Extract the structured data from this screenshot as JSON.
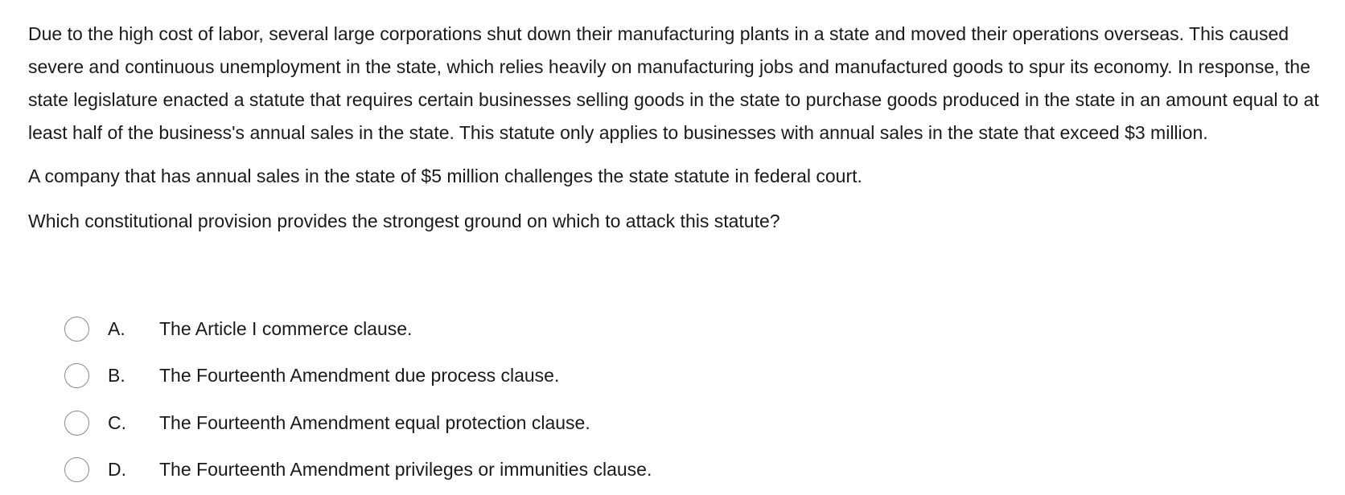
{
  "question": {
    "paragraphs": [
      "Due to the high cost of labor, several large corporations shut down their manufacturing plants in a state and moved their operations overseas. This caused severe and continuous unemployment in the state, which relies heavily on manufacturing jobs and manufactured goods to spur its economy.  In response, the state legislature enacted a statute that requires certain businesses selling goods in the state to purchase goods produced in the state in an amount equal to at least half of the business's annual sales in the state.  This statute only applies to businesses with annual sales in the state that exceed $3 million.",
      "A company that has annual sales in the state of $5 million challenges the state statute in federal court.",
      "Which constitutional provision provides the strongest ground on which to attack this statute?"
    ],
    "options": [
      {
        "letter": "A.",
        "text": "The Article I commerce clause."
      },
      {
        "letter": "B.",
        "text": "The Fourteenth Amendment due process clause."
      },
      {
        "letter": "C.",
        "text": "The Fourteenth Amendment equal protection clause."
      },
      {
        "letter": "D.",
        "text": "The Fourteenth Amendment privileges or immunities clause."
      }
    ]
  }
}
